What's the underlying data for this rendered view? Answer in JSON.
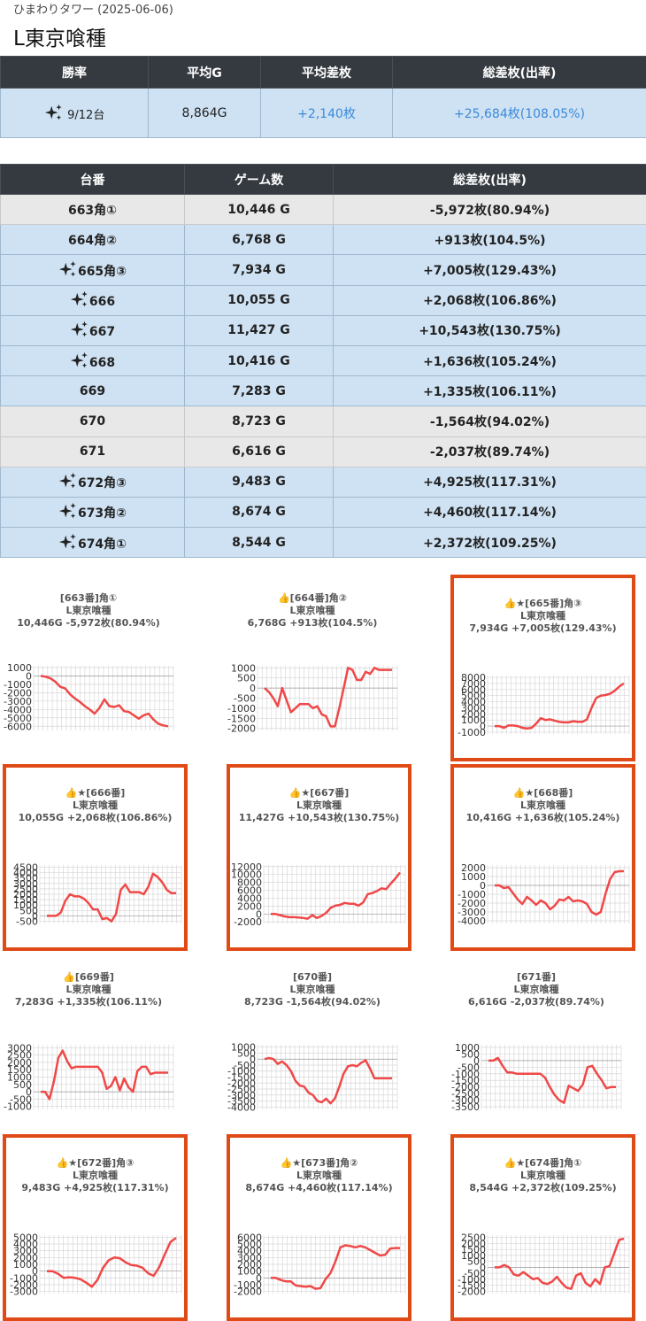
{
  "header": {
    "subtitle": "ひまわりタワー (2025-06-06)",
    "title": "L東京喰種"
  },
  "summary": {
    "headers": [
      "勝率",
      "平均G",
      "平均差枚",
      "総差枚(出率)"
    ],
    "win_rate": "9/12台",
    "avg_games": "8,864G",
    "avg_diff": "+2,140枚",
    "total_diff": "+25,684枚(108.05%)"
  },
  "machine_table": {
    "headers": [
      "台番",
      "ゲーム数",
      "総差枚(出率)"
    ],
    "rows": [
      {
        "no": "663角①",
        "games": "10,446 G",
        "diff": "-5,972枚(80.94%)",
        "win": false
      },
      {
        "no": "664角②",
        "games": "6,768 G",
        "diff": "+913枚(104.5%)",
        "win": true,
        "sparkle": false
      },
      {
        "no": "665角③",
        "games": "7,934 G",
        "diff": "+7,005枚(129.43%)",
        "win": true,
        "sparkle": true
      },
      {
        "no": "666",
        "games": "10,055 G",
        "diff": "+2,068枚(106.86%)",
        "win": true,
        "sparkle": true
      },
      {
        "no": "667",
        "games": "11,427 G",
        "diff": "+10,543枚(130.75%)",
        "win": true,
        "sparkle": true
      },
      {
        "no": "668",
        "games": "10,416 G",
        "diff": "+1,636枚(105.24%)",
        "win": true,
        "sparkle": true
      },
      {
        "no": "669",
        "games": "7,283 G",
        "diff": "+1,335枚(106.11%)",
        "win": true,
        "sparkle": false
      },
      {
        "no": "670",
        "games": "8,723 G",
        "diff": "-1,564枚(94.02%)",
        "win": false
      },
      {
        "no": "671",
        "games": "6,616 G",
        "diff": "-2,037枚(89.74%)",
        "win": false
      },
      {
        "no": "672角③",
        "games": "9,483 G",
        "diff": "+4,925枚(117.31%)",
        "win": true,
        "sparkle": true
      },
      {
        "no": "673角②",
        "games": "8,674 G",
        "diff": "+4,460枚(117.14%)",
        "win": true,
        "sparkle": true
      },
      {
        "no": "674角①",
        "games": "8,544 G",
        "diff": "+2,372枚(109.25%)",
        "win": true,
        "sparkle": true
      }
    ]
  },
  "colors": {
    "header_bg": "#353a40",
    "win_bg": "#cfe2f3",
    "lose_bg": "#e8e8e8",
    "highlight": "#e04a16",
    "line": "#f04848",
    "value_blue": "#3b8ad9"
  },
  "chart_data": [
    {
      "type": "line",
      "label": "[663番]角①",
      "thumb": false,
      "star": false,
      "machine": "L東京喰種",
      "stats": "10,446G -5,972枚(80.94%)",
      "highlight": false,
      "yticks": [
        1000,
        0,
        -1000,
        -2000,
        -3000,
        -4000,
        -5000,
        -6000
      ],
      "ylim": [
        -6500,
        1200
      ],
      "values": [
        0,
        -100,
        -300,
        -700,
        -1300,
        -1500,
        -2200,
        -2700,
        -3100,
        -3600,
        -4000,
        -4500,
        -3800,
        -2800,
        -3600,
        -3700,
        -3500,
        -4200,
        -4300,
        -4700,
        -5100,
        -4700,
        -4500,
        -5200,
        -5700,
        -5900,
        -6000
      ]
    },
    {
      "type": "line",
      "label": "[664番]角②",
      "thumb": true,
      "star": false,
      "machine": "L東京喰種",
      "stats": "6,768G +913枚(104.5%)",
      "highlight": false,
      "yticks": [
        1000,
        500,
        0,
        -500,
        -1000,
        -1500,
        -2000
      ],
      "ylim": [
        -2100,
        1100
      ],
      "values": [
        0,
        -200,
        -500,
        -900,
        0,
        -600,
        -1200,
        -1000,
        -800,
        -800,
        -800,
        -1000,
        -900,
        -1300,
        -1400,
        -1900,
        -1900,
        -1000,
        0,
        1000,
        900,
        400,
        400,
        800,
        700,
        1000,
        900,
        900,
        900,
        900
      ]
    },
    {
      "type": "line",
      "label": "[665番]角③",
      "thumb": true,
      "star": true,
      "machine": "L東京喰種",
      "stats": "7,934G +7,005枚(129.43%)",
      "highlight": true,
      "yticks": [
        8000,
        7000,
        6000,
        5000,
        4000,
        3000,
        2000,
        1000,
        0,
        -1000
      ],
      "ylim": [
        -1300,
        8300
      ],
      "values": [
        0,
        0,
        -300,
        100,
        100,
        0,
        -300,
        -400,
        -300,
        400,
        1300,
        1000,
        1100,
        900,
        700,
        600,
        600,
        800,
        700,
        700,
        1100,
        3000,
        4600,
        5000,
        5100,
        5300,
        5800,
        6500,
        7000
      ]
    },
    {
      "type": "line",
      "label": "[666番]",
      "thumb": true,
      "star": true,
      "machine": "L東京喰種",
      "stats": "10,055G +2,068枚(106.86%)",
      "highlight": true,
      "yticks": [
        4500,
        4000,
        3500,
        3000,
        2500,
        2000,
        1500,
        1000,
        500,
        0,
        -500
      ],
      "ylim": [
        -700,
        4700
      ],
      "values": [
        0,
        0,
        0,
        300,
        1400,
        2000,
        1800,
        1800,
        1600,
        1200,
        600,
        600,
        -300,
        -200,
        -500,
        200,
        2400,
        2900,
        2200,
        2200,
        2200,
        2000,
        2700,
        3900,
        3600,
        3100,
        2400,
        2100,
        2100
      ]
    },
    {
      "type": "line",
      "label": "[667番]",
      "thumb": true,
      "star": true,
      "machine": "L東京喰種",
      "stats": "11,427G +10,543枚(130.75%)",
      "highlight": true,
      "yticks": [
        12000,
        10000,
        8000,
        6000,
        4000,
        2000,
        0,
        -2000
      ],
      "ylim": [
        -2400,
        12400
      ],
      "values": [
        0,
        0,
        -300,
        -600,
        -800,
        -800,
        -900,
        -1000,
        -1200,
        -300,
        -1000,
        -500,
        300,
        1600,
        2100,
        2300,
        2800,
        2600,
        2600,
        2100,
        2900,
        5000,
        5300,
        5800,
        6500,
        6300,
        7700,
        9000,
        10500
      ]
    },
    {
      "type": "line",
      "label": "[668番]",
      "thumb": true,
      "star": true,
      "machine": "L東京喰種",
      "stats": "10,416G +1,636枚(105.24%)",
      "highlight": true,
      "yticks": [
        2000,
        1000,
        0,
        -1000,
        -2000,
        -3000,
        -4000
      ],
      "ylim": [
        -4300,
        2300
      ],
      "values": [
        0,
        0,
        -300,
        -200,
        -900,
        -1600,
        -2100,
        -1300,
        -1700,
        -2200,
        -1700,
        -2000,
        -2700,
        -2300,
        -1600,
        -1700,
        -1300,
        -1800,
        -1700,
        -1800,
        -2100,
        -3000,
        -3300,
        -3000,
        -1000,
        700,
        1500,
        1600,
        1600
      ]
    },
    {
      "type": "line",
      "label": "[669番]",
      "thumb": true,
      "star": false,
      "machine": "L東京喰種",
      "stats": "7,283G +1,335枚(106.11%)",
      "highlight": false,
      "yticks": [
        3000,
        2500,
        2000,
        1500,
        1000,
        500,
        0,
        -500,
        -1000
      ],
      "ylim": [
        -1200,
        3200
      ],
      "values": [
        0,
        0,
        -500,
        700,
        2300,
        2800,
        2100,
        1600,
        1700,
        1700,
        1700,
        1700,
        1700,
        1700,
        1300,
        200,
        400,
        1000,
        100,
        900,
        300,
        0,
        1400,
        1700,
        1700,
        1200,
        1300,
        1300,
        1300,
        1300
      ]
    },
    {
      "type": "line",
      "label": "[670番]",
      "thumb": false,
      "star": false,
      "machine": "L東京喰種",
      "stats": "8,723G -1,564枚(94.02%)",
      "highlight": false,
      "yticks": [
        1000,
        500,
        0,
        -500,
        -1000,
        -1500,
        -2000,
        -2500,
        -3000,
        -3500,
        -4000
      ],
      "ylim": [
        -4200,
        1200
      ],
      "values": [
        0,
        100,
        0,
        -400,
        -200,
        -500,
        -1000,
        -1800,
        -2200,
        -2300,
        -2800,
        -3000,
        -3500,
        -3600,
        -3300,
        -3700,
        -3300,
        -2300,
        -1200,
        -600,
        -500,
        -600,
        -300,
        -100,
        -800,
        -1600,
        -1600,
        -1600,
        -1600,
        -1600
      ]
    },
    {
      "type": "line",
      "label": "[671番]",
      "thumb": false,
      "star": false,
      "machine": "L東京喰種",
      "stats": "6,616G -2,037枚(89.74%)",
      "highlight": false,
      "yticks": [
        1000,
        500,
        0,
        -500,
        -1000,
        -1500,
        -2000,
        -2500,
        -3000,
        -3500
      ],
      "ylim": [
        -3700,
        1200
      ],
      "values": [
        0,
        0,
        200,
        -400,
        -900,
        -900,
        -1000,
        -1000,
        -1000,
        -1000,
        -1000,
        -1000,
        -1300,
        -2000,
        -2600,
        -3000,
        -3200,
        -1900,
        -2100,
        -2300,
        -1800,
        -500,
        -400,
        -1000,
        -1500,
        -2100,
        -2000,
        -2000
      ]
    },
    {
      "type": "line",
      "label": "[672番]角③",
      "thumb": true,
      "star": true,
      "machine": "L東京喰種",
      "stats": "9,483G +4,925枚(117.31%)",
      "highlight": true,
      "yticks": [
        5000,
        4000,
        3000,
        2000,
        1000,
        0,
        -1000,
        -2000,
        -3000
      ],
      "ylim": [
        -3300,
        5300
      ],
      "values": [
        0,
        0,
        -400,
        -1000,
        -900,
        -1000,
        -1200,
        -1700,
        -2300,
        -1300,
        500,
        1600,
        2000,
        1900,
        1300,
        900,
        800,
        500,
        -300,
        -700,
        600,
        2500,
        4300,
        4900
      ]
    },
    {
      "type": "line",
      "label": "[673番]角②",
      "thumb": true,
      "star": true,
      "machine": "L東京喰種",
      "stats": "8,674G +4,460枚(117.14%)",
      "highlight": true,
      "yticks": [
        6000,
        5000,
        4000,
        3000,
        2000,
        1000,
        0,
        -1000,
        -2000
      ],
      "ylim": [
        -2300,
        6300
      ],
      "values": [
        0,
        0,
        -300,
        -500,
        -500,
        -1100,
        -1200,
        -1300,
        -1200,
        -1600,
        -1500,
        -200,
        700,
        2400,
        4500,
        4800,
        4700,
        4500,
        4700,
        4500,
        4100,
        3700,
        3300,
        3400,
        4300,
        4400,
        4400
      ]
    },
    {
      "type": "line",
      "label": "[674番]角①",
      "thumb": true,
      "star": true,
      "machine": "L東京喰種",
      "stats": "8,544G +2,372枚(109.25%)",
      "highlight": true,
      "yticks": [
        2500,
        2000,
        1500,
        1000,
        500,
        0,
        -500,
        -1000,
        -1500,
        -2000
      ],
      "ylim": [
        -2200,
        2700
      ],
      "values": [
        0,
        0,
        200,
        0,
        -600,
        -700,
        -400,
        -700,
        -1000,
        -900,
        -1300,
        -1400,
        -1200,
        -800,
        -1300,
        -1700,
        -1800,
        -700,
        -500,
        -1300,
        -1600,
        -1000,
        -1400,
        0,
        100,
        1200,
        2300,
        2400
      ]
    }
  ]
}
